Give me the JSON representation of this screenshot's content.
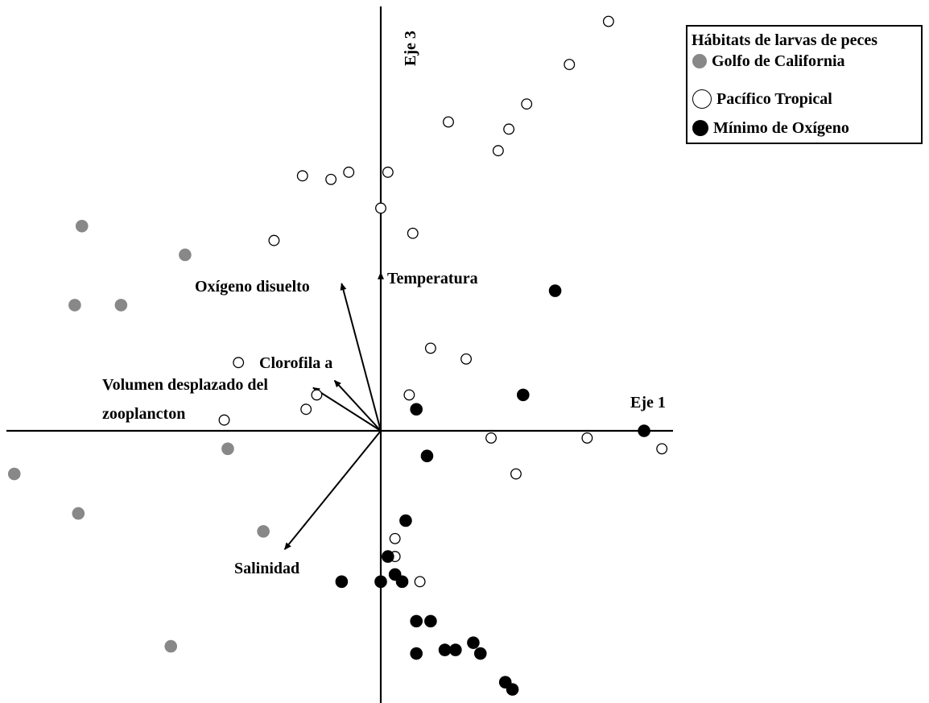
{
  "chart_data": {
    "type": "scatter",
    "title": "",
    "xlabel": "Eje 1",
    "ylabel": "Eje 3",
    "xlim": [
      -10.5,
      8.1
    ],
    "ylim": [
      -7.6,
      11.7
    ],
    "grid": false,
    "legend": {
      "title": "Hábitats de larvas de peces",
      "placement": "top-right"
    },
    "series": [
      {
        "name": "Golfo de California",
        "color": "#888888",
        "marker": "filled-circle",
        "points": [
          [
            -8.4,
            5.7
          ],
          [
            -5.5,
            4.9
          ],
          [
            -8.6,
            3.5
          ],
          [
            -7.3,
            3.5
          ],
          [
            -4.3,
            -0.5
          ],
          [
            -10.3,
            -1.2
          ],
          [
            -8.5,
            -2.3
          ],
          [
            -3.3,
            -2.8
          ],
          [
            -5.9,
            -6.0
          ]
        ]
      },
      {
        "name": "Pacífico Tropical",
        "color": "#ffffff",
        "marker": "open-circle",
        "points": [
          [
            6.4,
            11.4
          ],
          [
            5.3,
            10.2
          ],
          [
            4.1,
            9.1
          ],
          [
            1.9,
            8.6
          ],
          [
            3.6,
            8.4
          ],
          [
            3.3,
            7.8
          ],
          [
            -0.9,
            7.2
          ],
          [
            -1.4,
            7.0
          ],
          [
            -2.2,
            7.1
          ],
          [
            0.2,
            7.2
          ],
          [
            0.0,
            6.2
          ],
          [
            0.9,
            5.5
          ],
          [
            -3.0,
            5.3
          ],
          [
            1.4,
            2.3
          ],
          [
            2.4,
            2.0
          ],
          [
            -4.0,
            1.9
          ],
          [
            0.8,
            1.0
          ],
          [
            -1.8,
            1.0
          ],
          [
            -2.1,
            0.6
          ],
          [
            -4.4,
            0.3
          ],
          [
            3.1,
            -0.2
          ],
          [
            5.8,
            -0.2
          ],
          [
            7.9,
            -0.5
          ],
          [
            3.8,
            -1.2
          ],
          [
            0.4,
            -3.0
          ],
          [
            0.4,
            -3.5
          ],
          [
            1.1,
            -4.2
          ]
        ]
      },
      {
        "name": "Mínimo de Oxígeno",
        "color": "#000000",
        "marker": "filled-circle",
        "points": [
          [
            4.9,
            3.9
          ],
          [
            4.0,
            1.0
          ],
          [
            1.0,
            0.6
          ],
          [
            7.4,
            0.0
          ],
          [
            1.3,
            -0.7
          ],
          [
            0.7,
            -2.5
          ],
          [
            0.2,
            -3.5
          ],
          [
            0.4,
            -4.0
          ],
          [
            -1.1,
            -4.2
          ],
          [
            0.0,
            -4.2
          ],
          [
            0.6,
            -4.2
          ],
          [
            1.0,
            -5.3
          ],
          [
            1.4,
            -5.3
          ],
          [
            2.6,
            -5.9
          ],
          [
            1.8,
            -6.1
          ],
          [
            2.1,
            -6.1
          ],
          [
            2.8,
            -6.2
          ],
          [
            1.0,
            -6.2
          ],
          [
            3.5,
            -7.0
          ],
          [
            3.7,
            -7.2
          ]
        ]
      }
    ],
    "vectors": [
      {
        "label": "Temperatura",
        "x": 0.0,
        "y": 4.4
      },
      {
        "label": "Oxígeno disuelto",
        "x": -1.1,
        "y": 4.1
      },
      {
        "label": "Clorofila a",
        "x": -1.3,
        "y": 1.4
      },
      {
        "label": "Volumen desplazado del zooplancton",
        "x": -1.9,
        "y": 1.2
      },
      {
        "label": "Salinidad",
        "x": -2.7,
        "y": -3.3
      }
    ],
    "vector_labels": {
      "temperature": "Temperatura",
      "oxygen": "Oxígeno disuelto",
      "chlorophyll": "Clorofila a",
      "zooplankton_line1": "Volumen desplazado del",
      "zooplankton_line2": "zooplancton",
      "salinity": "Salinidad"
    }
  }
}
